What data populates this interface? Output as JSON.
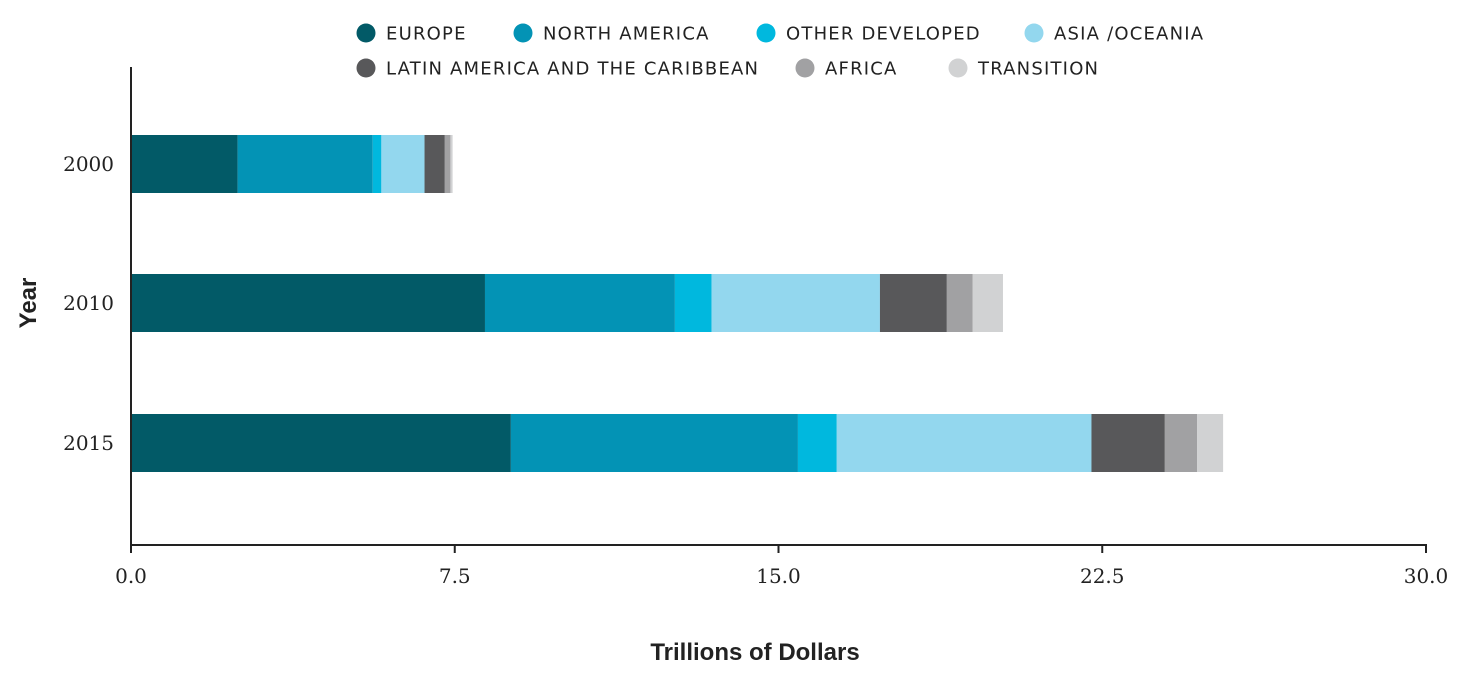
{
  "chart_data": {
    "type": "bar",
    "orientation": "horizontal",
    "stacked": true,
    "categories": [
      "2000",
      "2010",
      "2015"
    ],
    "series": [
      {
        "name": "EUROPE",
        "color": "#025a67",
        "values": [
          2.47,
          8.2,
          8.8
        ]
      },
      {
        "name": "NORTH AMERICA",
        "color": "#0393b5",
        "values": [
          3.13,
          4.4,
          6.65
        ]
      },
      {
        "name": "OTHER DEVELOPED",
        "color": "#00b8de",
        "values": [
          0.2,
          0.85,
          0.9
        ]
      },
      {
        "name": "ASIA /OCEANIA",
        "color": "#93d7ee",
        "values": [
          1.0,
          3.9,
          5.9
        ]
      },
      {
        "name": "LATIN AMERICA AND THE CARIBBEAN",
        "color": "#58585a",
        "values": [
          0.47,
          1.55,
          1.7
        ]
      },
      {
        "name": "AFRICA",
        "color": "#a1a1a3",
        "values": [
          0.13,
          0.6,
          0.75
        ]
      },
      {
        "name": "TRANSITION",
        "color": "#d1d2d3",
        "values": [
          0.05,
          0.7,
          0.6
        ]
      }
    ],
    "xlabel": "Trillions of Dollars",
    "ylabel": "Year",
    "xlim": [
      0,
      30
    ],
    "xticks": [
      "0.0",
      "7.5",
      "15.0",
      "22.5",
      "30.0"
    ],
    "grid": false,
    "legend_position": "top-center"
  }
}
